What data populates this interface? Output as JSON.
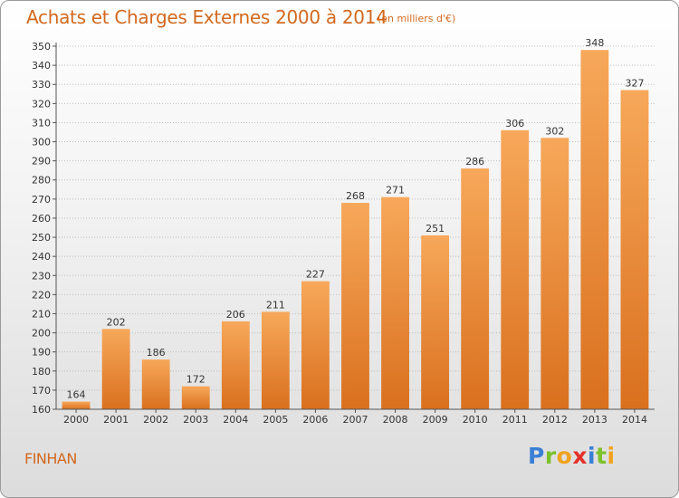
{
  "header": {
    "title": "Achats et Charges Externes 2000 à 2014",
    "subtitle": "(en milliers d'€)"
  },
  "footer": {
    "commune": "FINHAN",
    "logo_letters": [
      "P",
      "r",
      "o",
      "x",
      "i",
      "t",
      "i"
    ]
  },
  "colors": {
    "bar_light": "#f7a85a",
    "bar_dark": "#d9701e",
    "text_accent": "#d2691e",
    "grid": "#bdbdbd"
  },
  "chart_data": {
    "type": "bar",
    "title": "Achats et Charges Externes 2000 à 2014",
    "subtitle": "(en milliers d'€)",
    "categories": [
      "2000",
      "2001",
      "2002",
      "2003",
      "2004",
      "2005",
      "2006",
      "2007",
      "2008",
      "2009",
      "2010",
      "2011",
      "2012",
      "2013",
      "2014"
    ],
    "values": [
      164,
      202,
      186,
      172,
      206,
      211,
      227,
      268,
      271,
      251,
      286,
      306,
      302,
      348,
      327
    ],
    "ylim": [
      160,
      350
    ],
    "ytick_step": 10,
    "grid": true,
    "xlabel": "",
    "ylabel": ""
  }
}
